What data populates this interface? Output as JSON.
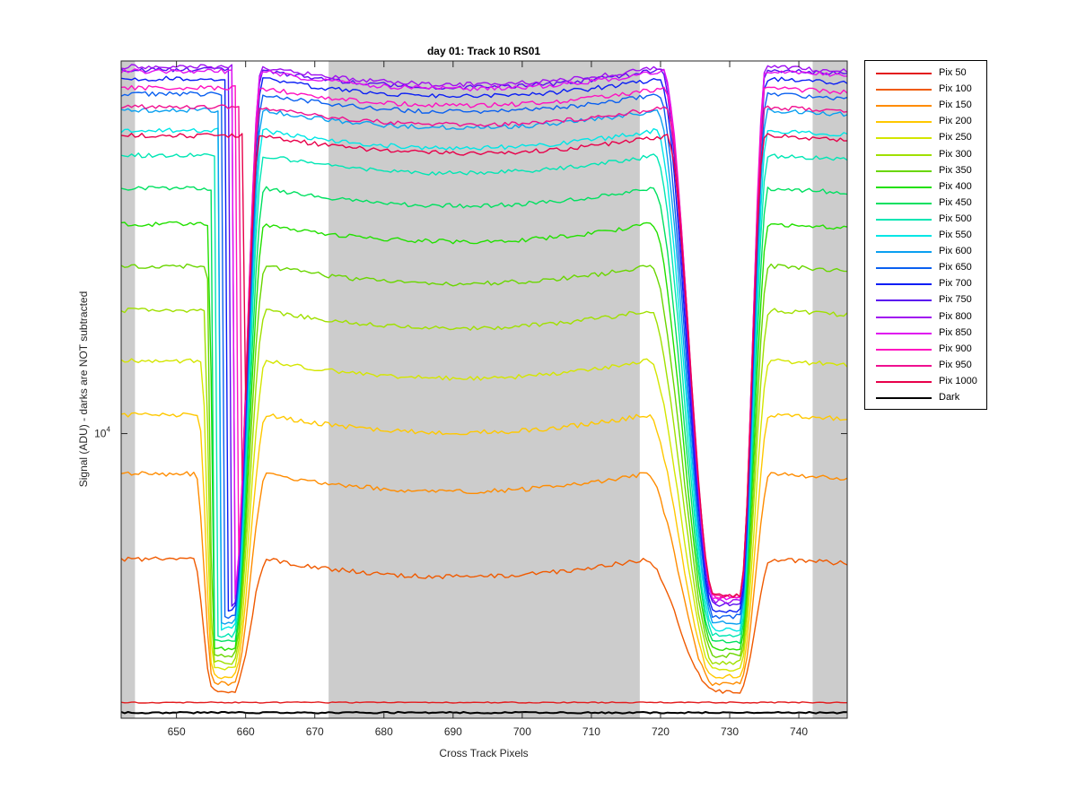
{
  "chart_data": {
    "type": "line",
    "title": "day 01: Track 10  RS01",
    "xlabel": "Cross Track Pixels",
    "ylabel": "Signal (ADU) - darks are NOT subtracted",
    "y_scale": "log",
    "xlim": [
      642,
      747
    ],
    "ylim": [
      4750,
      26500
    ],
    "x_ticks": [
      650,
      660,
      670,
      680,
      690,
      700,
      710,
      720,
      730,
      740
    ],
    "y_ticks": [
      {
        "value": 10000,
        "label": "10",
        "exponent": "4"
      }
    ],
    "grid": false,
    "legend_position": "outside-right",
    "shaded_x_ranges": [
      [
        642,
        644
      ],
      [
        672,
        717
      ],
      [
        742,
        747
      ]
    ],
    "shade_color": "#cccccc",
    "plateau_x": [
      [
        645,
        652
      ],
      [
        662,
        717
      ],
      [
        735,
        747
      ]
    ],
    "valley_x": [
      [
        656,
        658
      ],
      [
        728,
        731
      ]
    ],
    "series": [
      {
        "name": "Pix 50",
        "color": "#e31a1c",
        "plateau": 4950,
        "valley": 4950
      },
      {
        "name": "Pix 100",
        "color": "#f05a00",
        "plateau": 7200,
        "valley": 5100
      },
      {
        "name": "Pix 150",
        "color": "#ff8c00",
        "plateau": 9000,
        "valley": 5200
      },
      {
        "name": "Pix 200",
        "color": "#ffc800",
        "plateau": 10500,
        "valley": 5300
      },
      {
        "name": "Pix 250",
        "color": "#d4e600",
        "plateau": 12100,
        "valley": 5400
      },
      {
        "name": "Pix 300",
        "color": "#a0e000",
        "plateau": 13800,
        "valley": 5500
      },
      {
        "name": "Pix 350",
        "color": "#6ad600",
        "plateau": 15500,
        "valley": 5600
      },
      {
        "name": "Pix 400",
        "color": "#22e000",
        "plateau": 17300,
        "valley": 5700
      },
      {
        "name": "Pix 450",
        "color": "#00e060",
        "plateau": 19000,
        "valley": 5800
      },
      {
        "name": "Pix 500",
        "color": "#00e6b4",
        "plateau": 20700,
        "valley": 5900
      },
      {
        "name": "Pix 550",
        "color": "#00e6e6",
        "plateau": 22100,
        "valley": 6000
      },
      {
        "name": "Pix 600",
        "color": "#0aa0f0",
        "plateau": 23300,
        "valley": 6100
      },
      {
        "name": "Pix 650",
        "color": "#0a60f0",
        "plateau": 24300,
        "valley": 6200
      },
      {
        "name": "Pix 700",
        "color": "#0a1ef5",
        "plateau": 25300,
        "valley": 6300
      },
      {
        "name": "Pix 750",
        "color": "#5a10f0",
        "plateau": 25900,
        "valley": 6400
      },
      {
        "name": "Pix 800",
        "color": "#a010f0",
        "plateau": 26100,
        "valley": 6450
      },
      {
        "name": "Pix 850",
        "color": "#e010f0",
        "plateau": 25800,
        "valley": 6500
      },
      {
        "name": "Pix 900",
        "color": "#ff10c0",
        "plateau": 24700,
        "valley": 6520
      },
      {
        "name": "Pix 950",
        "color": "#f01090",
        "plateau": 23500,
        "valley": 6540
      },
      {
        "name": "Pix 1000",
        "color": "#e8004a",
        "plateau": 21800,
        "valley": 6560
      },
      {
        "name": "Dark",
        "color": "#000000",
        "plateau": 4820,
        "valley": 4820
      }
    ]
  }
}
